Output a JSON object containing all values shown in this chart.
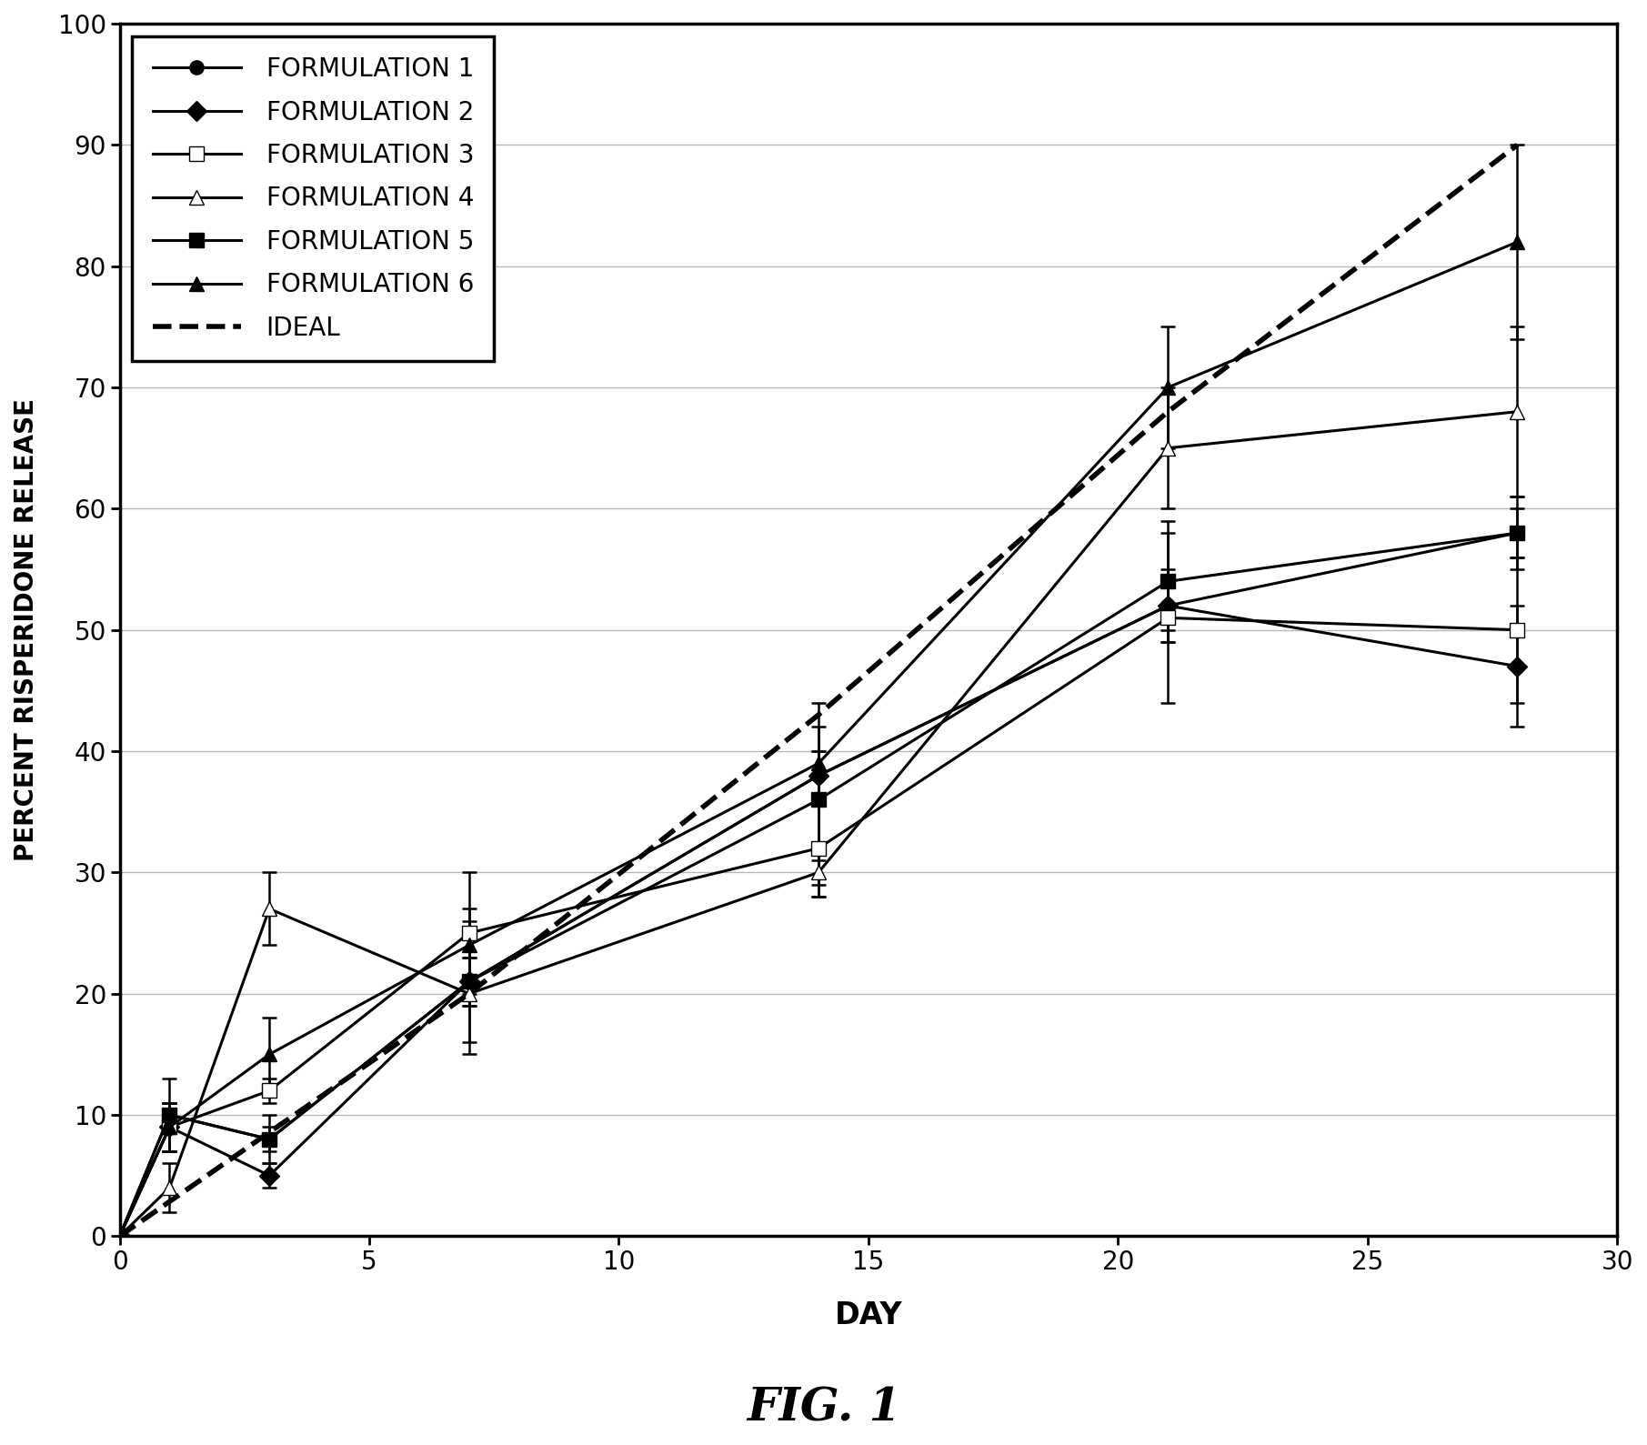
{
  "title": "FIG. 1",
  "xlabel": "DAY",
  "ylabel": "PERCENT RISPERIDONE RELEASE",
  "xlim": [
    0,
    30
  ],
  "ylim": [
    0,
    100
  ],
  "xticks": [
    0,
    5,
    10,
    15,
    20,
    25,
    30
  ],
  "yticks": [
    0,
    10,
    20,
    30,
    40,
    50,
    60,
    70,
    80,
    90,
    100
  ],
  "days": [
    0,
    1,
    3,
    7,
    14,
    21,
    28
  ],
  "f1": {
    "y": [
      0,
      10,
      8,
      21,
      38,
      52,
      58
    ],
    "yerr": [
      0,
      3,
      1,
      2,
      2,
      2,
      2
    ],
    "label": "FORMULATION 1"
  },
  "f2": {
    "y": [
      0,
      9,
      5,
      21,
      38,
      52,
      47
    ],
    "yerr": [
      0,
      2,
      1,
      2,
      2,
      3,
      5
    ],
    "label": "FORMULATION 2"
  },
  "f3": {
    "y": [
      0,
      9,
      12,
      25,
      32,
      51,
      50
    ],
    "yerr": [
      0,
      2,
      1,
      5,
      4,
      7,
      6
    ],
    "label": "FORMULATION 3"
  },
  "f4": {
    "y": [
      0,
      4,
      27,
      20,
      30,
      65,
      68
    ],
    "yerr": [
      0,
      2,
      3,
      5,
      1,
      5,
      7
    ],
    "label": "FORMULATION 4"
  },
  "f5": {
    "y": [
      0,
      10,
      8,
      21,
      36,
      54,
      58
    ],
    "yerr": [
      0,
      1,
      2,
      5,
      8,
      5,
      3
    ],
    "label": "FORMULATION 5"
  },
  "f6": {
    "y": [
      0,
      9,
      15,
      24,
      39,
      70,
      82
    ],
    "yerr": [
      0,
      2,
      3,
      3,
      3,
      5,
      8
    ],
    "label": "FORMULATION 6"
  },
  "ideal_days": [
    0,
    7,
    14,
    21,
    28
  ],
  "ideal_y": [
    0,
    20,
    43,
    68,
    90
  ],
  "background_color": "#ffffff",
  "line_color": "#000000",
  "grid_color": "#888888"
}
